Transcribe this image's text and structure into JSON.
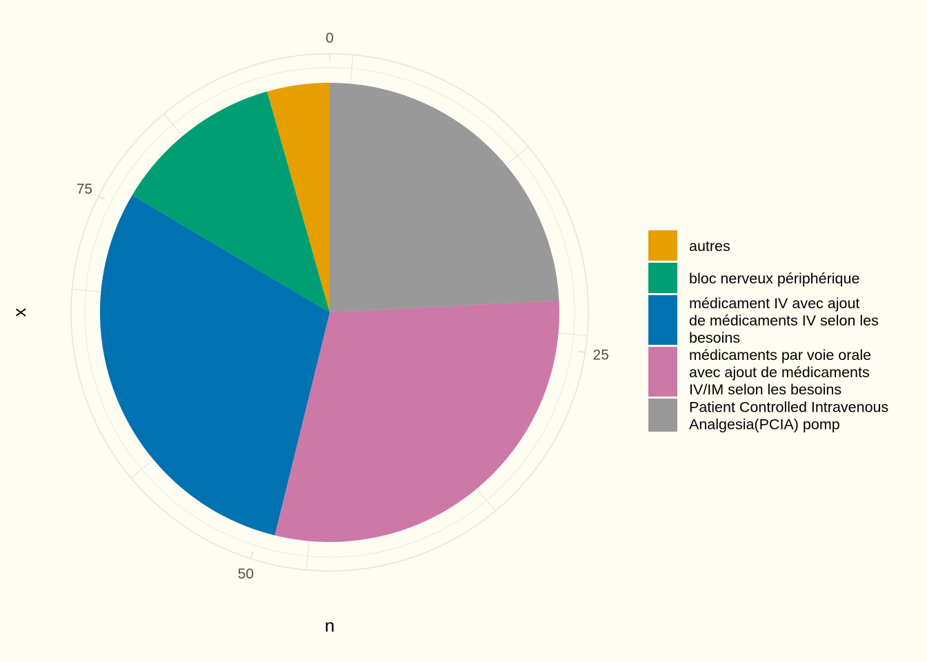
{
  "chart_data": {
    "type": "pie",
    "coord": "polar",
    "xlabel": "n",
    "ylabel": "x",
    "total": 91,
    "radial_ticks": [
      0,
      25,
      50,
      75
    ],
    "slices": [
      {
        "label": "Patient Controlled Intravenous Analgesia(PCIA) pomp",
        "value": 22,
        "color": "#999999"
      },
      {
        "label": "médicaments par voie orale avec ajout de médicaments IV/IM selon les besoins",
        "value": 27,
        "color": "#CC79A7"
      },
      {
        "label": "médicament IV avec ajout de médicaments IV selon les besoins",
        "value": 27,
        "color": "#0072B2"
      },
      {
        "label": "bloc nerveux périphérique",
        "value": 11,
        "color": "#009E73"
      },
      {
        "label": "autres",
        "value": 4,
        "color": "#E69F00"
      }
    ],
    "legend": {
      "position": "right",
      "items": [
        {
          "lines": [
            "autres"
          ],
          "color": "#E69F00"
        },
        {
          "lines": [
            "bloc nerveux périphérique"
          ],
          "color": "#009E73"
        },
        {
          "lines": [
            "médicament IV avec ajout",
            "de médicaments IV selon les",
            "besoins"
          ],
          "color": "#0072B2"
        },
        {
          "lines": [
            "médicaments par voie orale",
            "avec ajout de médicaments",
            "IV/IM selon les besoins"
          ],
          "color": "#CC79A7"
        },
        {
          "lines": [
            "Patient Controlled Intravenous",
            "Analgesia(PCIA) pomp"
          ],
          "color": "#999999"
        }
      ]
    },
    "grid": true,
    "background": "#FFFDF2"
  }
}
